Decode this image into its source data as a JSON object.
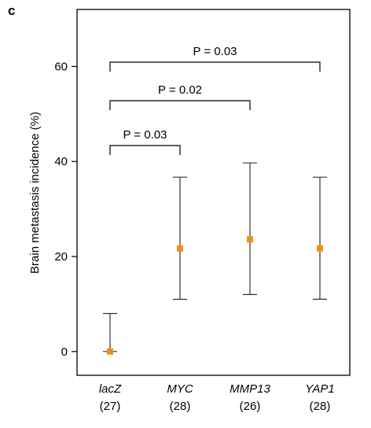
{
  "panel_label": "c",
  "chart_data": {
    "type": "scatter",
    "ylabel": "Brain metastasis incidence (%)",
    "ylim": [
      -5,
      72
    ],
    "yticks": [
      0,
      20,
      40,
      60
    ],
    "categories": [
      "lacZ",
      "MYC",
      "MMP13",
      "YAP1"
    ],
    "category_counts": [
      "(27)",
      "(28)",
      "(26)",
      "(28)"
    ],
    "values": [
      0,
      21.7,
      23.6,
      21.7
    ],
    "error_low": [
      0,
      11,
      12,
      11
    ],
    "error_high": [
      8,
      36.7,
      39.7,
      36.7
    ],
    "comparisons": [
      {
        "from": "lacZ",
        "to": "MYC",
        "label": "P = 0.03"
      },
      {
        "from": "lacZ",
        "to": "MMP13",
        "label": "P = 0.02"
      },
      {
        "from": "lacZ",
        "to": "YAP1",
        "label": "P = 0.03"
      }
    ],
    "marker_color": "#f28e1c",
    "grid": false
  }
}
